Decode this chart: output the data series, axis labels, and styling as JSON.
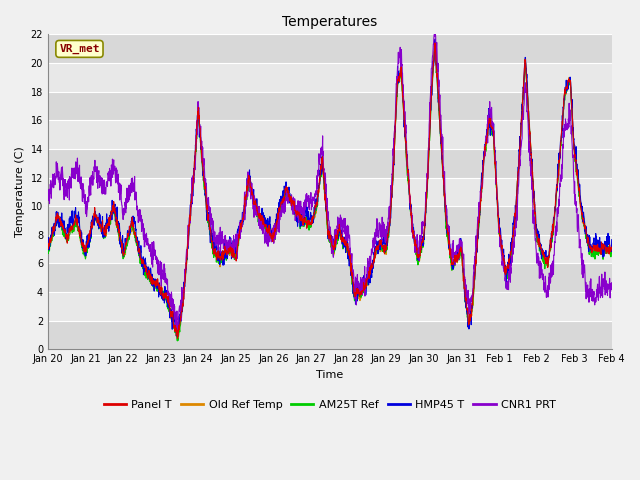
{
  "title": "Temperatures",
  "xlabel": "Time",
  "ylabel": "Temperature (C)",
  "ylim": [
    0,
    22
  ],
  "yticks": [
    0,
    2,
    4,
    6,
    8,
    10,
    12,
    14,
    16,
    18,
    20,
    22
  ],
  "x_labels": [
    "Jan 20",
    "Jan 21",
    "Jan 22",
    "Jan 23",
    "Jan 24",
    "Jan 25",
    "Jan 26",
    "Jan 27",
    "Jan 28",
    "Jan 29",
    "Jan 30",
    "Jan 31",
    "Feb 1",
    "Feb 2",
    "Feb 3",
    "Feb 4"
  ],
  "legend_labels": [
    "Panel T",
    "Old Ref Temp",
    "AM25T Ref",
    "HMP45 T",
    "CNR1 PRT"
  ],
  "legend_colors": [
    "#dd0000",
    "#dd8800",
    "#00cc00",
    "#0000dd",
    "#8800cc"
  ],
  "fig_facecolor": "#f0f0f0",
  "plot_facecolor": "#e8e8e8",
  "grid_color": "#ffffff",
  "annotation_text": "VR_met",
  "annotation_bg": "#ffffcc",
  "annotation_border": "#888800",
  "annotation_text_color": "#880000",
  "title_fontsize": 10,
  "axis_label_fontsize": 8,
  "tick_fontsize": 7,
  "legend_fontsize": 8
}
